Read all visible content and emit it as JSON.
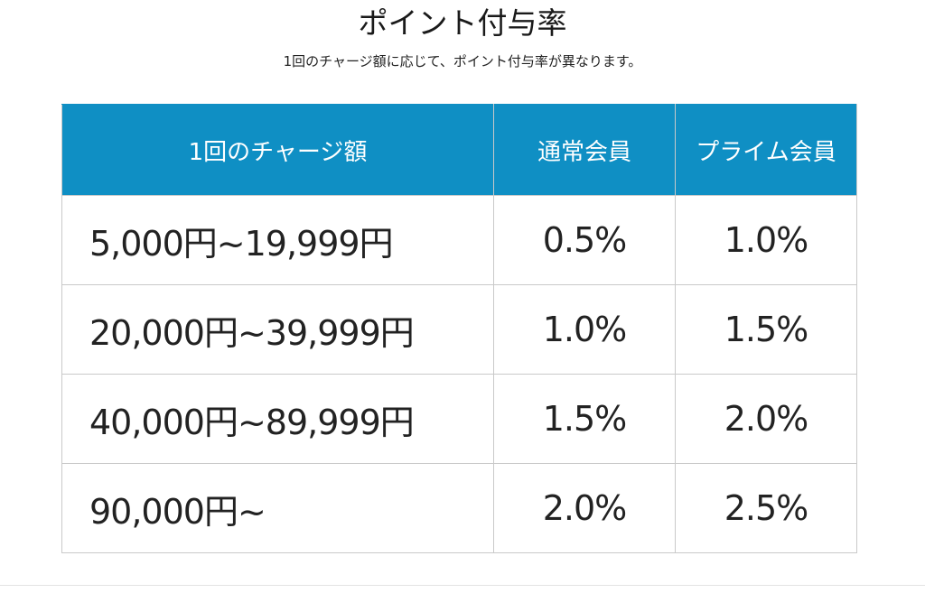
{
  "title": "ポイント付与率",
  "subtitle": "1回のチャージ額に応じて、ポイント付与率が異なります。",
  "table": {
    "headers": [
      "1回のチャージ額",
      "通常会員",
      "プライム会員"
    ],
    "rows": [
      {
        "range": "5,000円~19,999円",
        "normal": "0.5%",
        "prime": "1.0%"
      },
      {
        "range": "20,000円~39,999円",
        "normal": "1.0%",
        "prime": "1.5%"
      },
      {
        "range": "40,000円~89,999円",
        "normal": "1.5%",
        "prime": "2.0%"
      },
      {
        "range": "90,000円~",
        "normal": "2.0%",
        "prime": "2.5%"
      }
    ]
  },
  "colors": {
    "header_background": "#0f8fc4",
    "header_text": "#ffffff",
    "border": "#c9c9c9"
  }
}
